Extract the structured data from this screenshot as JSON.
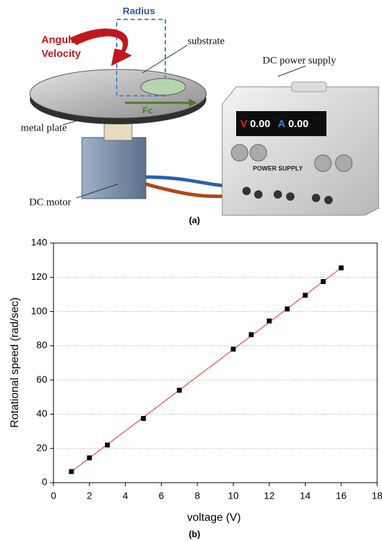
{
  "diagram": {
    "radius": "Radius",
    "angular_velocity": [
      "Angular",
      "Velocity"
    ],
    "substrate": "substrate",
    "power_supply": "DC power supply",
    "force": "Fc",
    "metal_plate": "metal plate",
    "motor": "DC motor",
    "display_v": "V",
    "display_v_value": "0.00",
    "display_a": "A",
    "display_a_value": "0.00",
    "panel_label": "POWER SUPPLY",
    "caption": "(a)"
  },
  "chart_data": {
    "type": "scatter",
    "caption": "(b)",
    "x_label": "voltage (V)",
    "y_label": "Rotational speed (rad/sec)",
    "xlim": [
      0,
      18
    ],
    "xticks": [
      0,
      2,
      4,
      6,
      8,
      10,
      12,
      14,
      16,
      18
    ],
    "ylim": [
      0,
      140
    ],
    "yticks": [
      0,
      20,
      40,
      60,
      80,
      100,
      120,
      140
    ],
    "grid": true,
    "series": [
      {
        "color": "#000000",
        "marker": "square",
        "x": [
          1,
          2,
          3,
          5,
          7,
          10,
          11,
          12,
          13,
          14,
          15,
          16
        ],
        "values": [
          6.5,
          14.5,
          22,
          37.5,
          54,
          78,
          86.5,
          94.5,
          101.5,
          109.5,
          117.5,
          125.5
        ]
      },
      {
        "color": "#e8271b",
        "marker": "none",
        "x": [
          1,
          16
        ],
        "values": [
          6.5,
          125.5
        ]
      }
    ]
  }
}
